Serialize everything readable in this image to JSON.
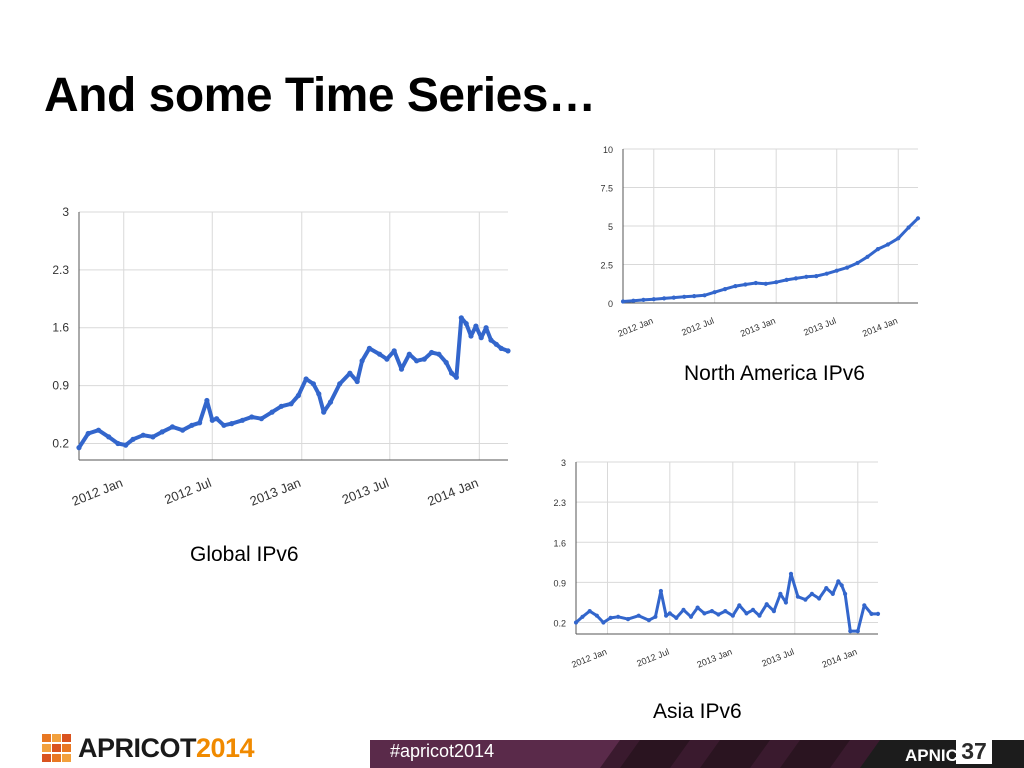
{
  "slide": {
    "title": "And some Time Series…"
  },
  "colors": {
    "series": "#3366cc",
    "grid": "#d9d9d9",
    "axis": "#333333",
    "brand_orange": "#f08a00"
  },
  "footer": {
    "logo_word": "APRICOT",
    "logo_year": "2014",
    "hashtag": "#apricot2014",
    "org": "APNIC",
    "org_number": "37"
  },
  "chart_data": [
    {
      "type": "line",
      "title": "",
      "caption": "Global IPv6",
      "x_tick_labels": [
        "2012 Jan",
        "2012 Jul",
        "2013 Jan",
        "2013 Jul",
        "2014 Jan"
      ],
      "y_tick_labels": [
        "3",
        "2.3",
        "1.6",
        "0.9",
        "0.2"
      ],
      "xlim": [
        "2011-10-01",
        "2014-03-01"
      ],
      "ylim": [
        0.0,
        3.0
      ],
      "grid": true,
      "series": [
        {
          "x": [
            "2011-10-01",
            "2011-10-20",
            "2011-11-10",
            "2011-12-01",
            "2011-12-20",
            "2012-01-05",
            "2012-01-20",
            "2012-02-10",
            "2012-03-01",
            "2012-03-20",
            "2012-04-10",
            "2012-05-01",
            "2012-05-20",
            "2012-06-05",
            "2012-06-20",
            "2012-07-01",
            "2012-07-10",
            "2012-07-25",
            "2012-08-10",
            "2012-09-01",
            "2012-09-20",
            "2012-10-10",
            "2012-11-01",
            "2012-11-20",
            "2012-12-10",
            "2012-12-25",
            "2013-01-10",
            "2013-01-25",
            "2013-02-05",
            "2013-02-15",
            "2013-03-01",
            "2013-03-20",
            "2013-04-10",
            "2013-04-25",
            "2013-05-05",
            "2013-05-20",
            "2013-06-10",
            "2013-06-25",
            "2013-07-10",
            "2013-07-25",
            "2013-08-10",
            "2013-08-25",
            "2013-09-10",
            "2013-09-25",
            "2013-10-10",
            "2013-10-25",
            "2013-11-05",
            "2013-11-15",
            "2013-11-25",
            "2013-12-05",
            "2013-12-15",
            "2013-12-25",
            "2014-01-05",
            "2014-01-15",
            "2014-01-25",
            "2014-02-05",
            "2014-02-15",
            "2014-03-01"
          ],
          "y": [
            0.15,
            0.32,
            0.36,
            0.28,
            0.2,
            0.18,
            0.25,
            0.3,
            0.28,
            0.34,
            0.4,
            0.36,
            0.42,
            0.45,
            0.72,
            0.48,
            0.5,
            0.42,
            0.44,
            0.48,
            0.52,
            0.5,
            0.58,
            0.65,
            0.68,
            0.78,
            0.98,
            0.92,
            0.8,
            0.58,
            0.7,
            0.92,
            1.05,
            0.95,
            1.2,
            1.35,
            1.28,
            1.22,
            1.32,
            1.1,
            1.28,
            1.2,
            1.22,
            1.3,
            1.28,
            1.18,
            1.05,
            1.0,
            1.72,
            1.65,
            1.5,
            1.62,
            1.48,
            1.6,
            1.45,
            1.4,
            1.35,
            1.32
          ]
        }
      ]
    },
    {
      "type": "line",
      "title": "",
      "caption": "North America IPv6",
      "x_tick_labels": [
        "2012 Jan",
        "2012 Jul",
        "2013 Jan",
        "2013 Jul",
        "2014 Jan"
      ],
      "y_tick_labels": [
        "10",
        "7.5",
        "5",
        "2.5",
        "0"
      ],
      "xlim": [
        "2011-10-01",
        "2014-03-01"
      ],
      "ylim": [
        0,
        10
      ],
      "grid": true,
      "series": [
        {
          "x": [
            "2011-10-01",
            "2011-11-01",
            "2011-12-01",
            "2012-01-01",
            "2012-02-01",
            "2012-03-01",
            "2012-04-01",
            "2012-05-01",
            "2012-06-01",
            "2012-07-01",
            "2012-08-01",
            "2012-09-01",
            "2012-10-01",
            "2012-11-01",
            "2012-12-01",
            "2013-01-01",
            "2013-02-01",
            "2013-03-01",
            "2013-04-01",
            "2013-05-01",
            "2013-06-01",
            "2013-07-01",
            "2013-08-01",
            "2013-09-01",
            "2013-10-01",
            "2013-11-01",
            "2013-12-01",
            "2014-01-01",
            "2014-02-01",
            "2014-03-01"
          ],
          "y": [
            0.1,
            0.15,
            0.2,
            0.25,
            0.3,
            0.35,
            0.4,
            0.45,
            0.5,
            0.7,
            0.9,
            1.1,
            1.2,
            1.3,
            1.25,
            1.35,
            1.5,
            1.6,
            1.7,
            1.75,
            1.9,
            2.1,
            2.3,
            2.6,
            3.0,
            3.5,
            3.8,
            4.2,
            4.9,
            5.5
          ]
        }
      ]
    },
    {
      "type": "line",
      "title": "",
      "caption": "Asia IPv6",
      "x_tick_labels": [
        "2012 Jan",
        "2012 Jul",
        "2013 Jan",
        "2013 Jul",
        "2014 Jan"
      ],
      "y_tick_labels": [
        "3",
        "2.3",
        "1.6",
        "0.9",
        "0.2"
      ],
      "xlim": [
        "2011-10-01",
        "2014-03-01"
      ],
      "ylim": [
        0.0,
        3.0
      ],
      "grid": true,
      "series": [
        {
          "x": [
            "2011-10-01",
            "2011-10-20",
            "2011-11-10",
            "2011-12-01",
            "2011-12-20",
            "2012-01-10",
            "2012-02-01",
            "2012-03-01",
            "2012-04-01",
            "2012-05-01",
            "2012-05-20",
            "2012-06-05",
            "2012-06-20",
            "2012-07-01",
            "2012-07-20",
            "2012-08-10",
            "2012-09-01",
            "2012-09-20",
            "2012-10-10",
            "2012-11-01",
            "2012-11-20",
            "2012-12-10",
            "2013-01-01",
            "2013-01-20",
            "2013-02-10",
            "2013-03-01",
            "2013-03-20",
            "2013-04-10",
            "2013-05-01",
            "2013-05-20",
            "2013-06-05",
            "2013-06-20",
            "2013-07-10",
            "2013-08-01",
            "2013-08-20",
            "2013-09-10",
            "2013-10-01",
            "2013-10-20",
            "2013-11-05",
            "2013-11-15",
            "2013-11-25",
            "2013-12-10",
            "2014-01-01",
            "2014-01-20",
            "2014-02-10",
            "2014-03-01"
          ],
          "y": [
            0.2,
            0.3,
            0.4,
            0.32,
            0.2,
            0.28,
            0.3,
            0.26,
            0.32,
            0.24,
            0.3,
            0.75,
            0.32,
            0.36,
            0.28,
            0.42,
            0.3,
            0.46,
            0.36,
            0.4,
            0.34,
            0.4,
            0.32,
            0.5,
            0.36,
            0.42,
            0.32,
            0.52,
            0.4,
            0.7,
            0.55,
            1.05,
            0.65,
            0.6,
            0.7,
            0.62,
            0.8,
            0.7,
            0.92,
            0.85,
            0.7,
            0.05,
            0.05,
            0.5,
            0.35,
            0.35
          ]
        }
      ]
    }
  ]
}
